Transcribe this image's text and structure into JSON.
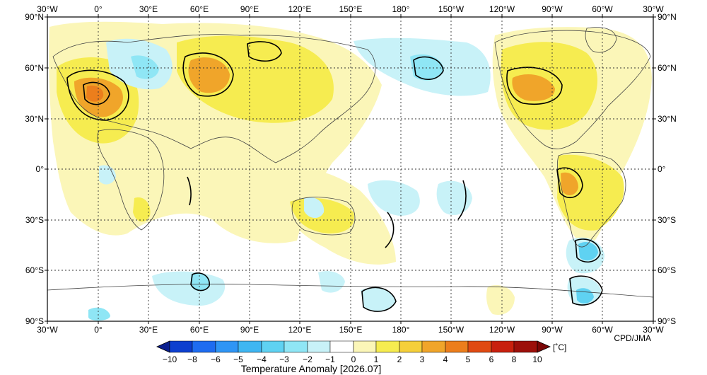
{
  "map": {
    "title": "Temperature Anomaly [2026.07]",
    "credit": "CPD/JMA",
    "unit": "[˚C]",
    "lon_labels": [
      "30°W",
      "0°",
      "30°E",
      "60°E",
      "90°E",
      "120°E",
      "150°E",
      "180°",
      "150°W",
      "120°W",
      "90°W",
      "60°W",
      "30°W"
    ],
    "lat_labels": [
      "90°N",
      "60°N",
      "30°N",
      "0°",
      "30°S",
      "60°S",
      "90°S"
    ],
    "colorbar": {
      "levels": [
        "−10",
        "−8",
        "−6",
        "−5",
        "−4",
        "−3",
        "−2",
        "−1",
        "0",
        "1",
        "2",
        "3",
        "4",
        "5",
        "6",
        "8",
        "10"
      ],
      "colors": [
        "#0a1f8f",
        "#0d3fcf",
        "#1e6cf0",
        "#2f95f5",
        "#3fb6f2",
        "#5fd2f2",
        "#8fe6f5",
        "#c8f2f8",
        "#ffffff",
        "#fbf6b8",
        "#f6ec50",
        "#f5cf3a",
        "#f0a52a",
        "#ec7e1c",
        "#e04a12",
        "#c8200e",
        "#9c0f0a"
      ]
    },
    "colors": {
      "gridline": "#333333",
      "coast": "#444444",
      "contour": "#000000"
    }
  }
}
